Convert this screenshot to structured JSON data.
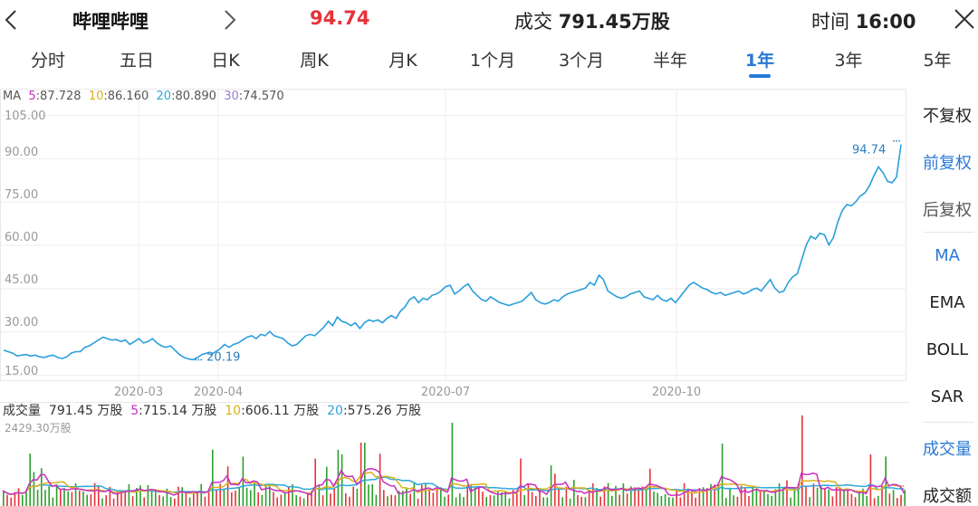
{
  "header": {
    "stock_name": "哔哩哔哩",
    "price": "94.74",
    "volume_prefix": "成交",
    "volume_value": "791.45万股",
    "time_prefix": "时间",
    "time_value": "16:00"
  },
  "tabs": [
    "分时",
    "五日",
    "日K",
    "周K",
    "月K",
    "1个月",
    "3个月",
    "半年",
    "1年",
    "3年",
    "5年"
  ],
  "active_tab": "1年",
  "side_options": [
    "不复权",
    "前复权",
    "后复权",
    "MA",
    "EMA",
    "BOLL",
    "SAR",
    "成交量",
    "成交额"
  ],
  "side_active": [
    "前复权",
    "MA",
    "成交量"
  ],
  "ma_legend": {
    "label": "MA",
    "items": [
      {
        "key": "5",
        "value": "87.728"
      },
      {
        "key": "10",
        "value": "86.160"
      },
      {
        "key": "20",
        "value": "80.890"
      },
      {
        "key": "30",
        "value": "74.570"
      }
    ]
  },
  "volume_legend": {
    "label": "成交量",
    "total": "791.45 万股",
    "items": [
      {
        "key": "5",
        "value": "715.14 万股"
      },
      {
        "key": "10",
        "value": "606.11 万股"
      },
      {
        "key": "20",
        "value": "575.26 万股"
      }
    ],
    "max_label": "2429.30万股"
  },
  "colors": {
    "up": "#e5333a",
    "down": "#2ca02c",
    "line": "#2a9fdc",
    "accent": "#2979d6",
    "ma5": "#c72fc0",
    "ma10": "#d9b21a",
    "ma20": "#2fa8d8",
    "ma30": "#9a7fd1"
  },
  "chart_data": {
    "type": "line",
    "y_ticks": [
      "105.00",
      "90.00",
      "75.00",
      "60.00",
      "45.00",
      "30.00",
      "15.00"
    ],
    "ylim": [
      15,
      105
    ],
    "x_ticks": [
      "2020-03",
      "2020-04",
      "2020-07",
      "2020-10"
    ],
    "last_price_label": "94.74",
    "low_label": "20.19",
    "price_series": [
      [
        0,
        23.5
      ],
      [
        5,
        23.0
      ],
      [
        10,
        22.5
      ],
      [
        15,
        21.5
      ],
      [
        20,
        21.8
      ],
      [
        25,
        22.0
      ],
      [
        30,
        21.5
      ],
      [
        35,
        21.8
      ],
      [
        40,
        21.2
      ],
      [
        45,
        21.0
      ],
      [
        50,
        21.5
      ],
      [
        55,
        21.8
      ],
      [
        60,
        21.0
      ],
      [
        65,
        20.6
      ],
      [
        70,
        21.2
      ],
      [
        75,
        22.5
      ],
      [
        80,
        23.0
      ],
      [
        85,
        23.0
      ],
      [
        90,
        24.5
      ],
      [
        95,
        25.0
      ],
      [
        100,
        26.0
      ],
      [
        105,
        27.0
      ],
      [
        110,
        28.0
      ],
      [
        115,
        27.5
      ],
      [
        120,
        27.0
      ],
      [
        125,
        27.2
      ],
      [
        130,
        26.5
      ],
      [
        135,
        27.0
      ],
      [
        140,
        25.5
      ],
      [
        145,
        26.5
      ],
      [
        150,
        27.5
      ],
      [
        155,
        26.0
      ],
      [
        160,
        26.5
      ],
      [
        165,
        27.5
      ],
      [
        170,
        26.0
      ],
      [
        175,
        25.0
      ],
      [
        180,
        24.5
      ],
      [
        185,
        25.0
      ],
      [
        190,
        23.5
      ],
      [
        195,
        22.0
      ],
      [
        200,
        21.0
      ],
      [
        205,
        20.5
      ],
      [
        210,
        20.19
      ],
      [
        215,
        21.0
      ],
      [
        220,
        22.0
      ],
      [
        225,
        22.5
      ],
      [
        230,
        22.0
      ],
      [
        235,
        23.0
      ],
      [
        240,
        24.0
      ],
      [
        245,
        25.5
      ],
      [
        250,
        24.5
      ],
      [
        255,
        25.5
      ],
      [
        260,
        26.0
      ],
      [
        265,
        27.0
      ],
      [
        270,
        28.0
      ],
      [
        275,
        28.5
      ],
      [
        280,
        27.5
      ],
      [
        285,
        29.0
      ],
      [
        290,
        28.5
      ],
      [
        295,
        30.0
      ],
      [
        300,
        28.5
      ],
      [
        305,
        28.0
      ],
      [
        310,
        27.5
      ],
      [
        315,
        26.0
      ],
      [
        320,
        25.0
      ],
      [
        325,
        25.5
      ],
      [
        330,
        27.0
      ],
      [
        335,
        28.5
      ],
      [
        340,
        29.0
      ],
      [
        345,
        28.5
      ],
      [
        350,
        30.0
      ],
      [
        355,
        31.5
      ],
      [
        360,
        33.5
      ],
      [
        365,
        32.0
      ],
      [
        370,
        35.0
      ],
      [
        375,
        33.5
      ],
      [
        380,
        33.0
      ],
      [
        385,
        32.0
      ],
      [
        390,
        33.0
      ],
      [
        395,
        31.0
      ],
      [
        400,
        33.0
      ],
      [
        405,
        34.0
      ],
      [
        410,
        33.5
      ],
      [
        415,
        34.0
      ],
      [
        420,
        33.0
      ],
      [
        425,
        34.5
      ],
      [
        430,
        35.5
      ],
      [
        435,
        34.5
      ],
      [
        440,
        37.0
      ],
      [
        445,
        38.5
      ],
      [
        450,
        41.0
      ],
      [
        455,
        42.0
      ],
      [
        460,
        40.0
      ],
      [
        465,
        41.5
      ],
      [
        470,
        41.0
      ],
      [
        475,
        42.5
      ],
      [
        480,
        43.0
      ],
      [
        485,
        44.0
      ],
      [
        490,
        45.5
      ],
      [
        495,
        46.0
      ],
      [
        500,
        43.0
      ],
      [
        505,
        44.0
      ],
      [
        510,
        45.5
      ],
      [
        515,
        46.5
      ],
      [
        520,
        44.0
      ],
      [
        525,
        42.5
      ],
      [
        530,
        41.0
      ],
      [
        535,
        40.5
      ],
      [
        540,
        42.0
      ],
      [
        545,
        41.0
      ],
      [
        550,
        40.0
      ],
      [
        555,
        39.5
      ],
      [
        560,
        39.0
      ],
      [
        565,
        39.5
      ],
      [
        570,
        40.0
      ],
      [
        575,
        40.5
      ],
      [
        580,
        42.0
      ],
      [
        585,
        43.5
      ],
      [
        590,
        41.0
      ],
      [
        595,
        40.0
      ],
      [
        600,
        39.5
      ],
      [
        605,
        40.0
      ],
      [
        610,
        41.0
      ],
      [
        615,
        40.5
      ],
      [
        620,
        42.0
      ],
      [
        625,
        43.0
      ],
      [
        630,
        43.5
      ],
      [
        635,
        44.0
      ],
      [
        640,
        44.5
      ],
      [
        645,
        45.0
      ],
      [
        650,
        47.0
      ],
      [
        655,
        46.0
      ],
      [
        660,
        49.5
      ],
      [
        665,
        48.0
      ],
      [
        670,
        44.0
      ],
      [
        675,
        43.0
      ],
      [
        680,
        42.0
      ],
      [
        685,
        41.5
      ],
      [
        690,
        42.0
      ],
      [
        695,
        43.0
      ],
      [
        700,
        43.5
      ],
      [
        705,
        44.0
      ],
      [
        710,
        42.0
      ],
      [
        715,
        41.5
      ],
      [
        720,
        41.0
      ],
      [
        725,
        42.5
      ],
      [
        730,
        41.0
      ],
      [
        735,
        40.5
      ],
      [
        740,
        41.5
      ],
      [
        745,
        40.0
      ],
      [
        750,
        42.0
      ],
      [
        755,
        44.0
      ],
      [
        760,
        46.0
      ],
      [
        765,
        47.0
      ],
      [
        770,
        46.0
      ],
      [
        775,
        45.0
      ],
      [
        780,
        44.5
      ],
      [
        785,
        43.5
      ],
      [
        790,
        43.0
      ],
      [
        795,
        43.5
      ],
      [
        800,
        42.5
      ],
      [
        805,
        43.0
      ],
      [
        810,
        43.5
      ],
      [
        815,
        44.0
      ],
      [
        820,
        43.0
      ],
      [
        825,
        43.5
      ],
      [
        830,
        44.5
      ],
      [
        835,
        45.0
      ],
      [
        840,
        44.0
      ],
      [
        845,
        46.0
      ],
      [
        850,
        48.0
      ],
      [
        855,
        45.0
      ],
      [
        860,
        43.5
      ],
      [
        865,
        44.0
      ],
      [
        870,
        47.0
      ],
      [
        875,
        49.0
      ],
      [
        880,
        50.0
      ],
      [
        885,
        55.0
      ],
      [
        890,
        60.0
      ],
      [
        895,
        63.0
      ],
      [
        900,
        62.0
      ],
      [
        905,
        64.0
      ],
      [
        910,
        63.5
      ],
      [
        915,
        60.0
      ],
      [
        920,
        62.5
      ],
      [
        925,
        68.0
      ],
      [
        930,
        72.0
      ],
      [
        935,
        74.0
      ],
      [
        940,
        73.5
      ],
      [
        945,
        75.0
      ],
      [
        950,
        77.0
      ],
      [
        955,
        78.0
      ],
      [
        960,
        80.5
      ],
      [
        965,
        84.0
      ],
      [
        970,
        87.0
      ],
      [
        975,
        85.0
      ],
      [
        980,
        82.0
      ],
      [
        985,
        81.5
      ],
      [
        990,
        83.5
      ],
      [
        995,
        94.74
      ]
    ]
  }
}
